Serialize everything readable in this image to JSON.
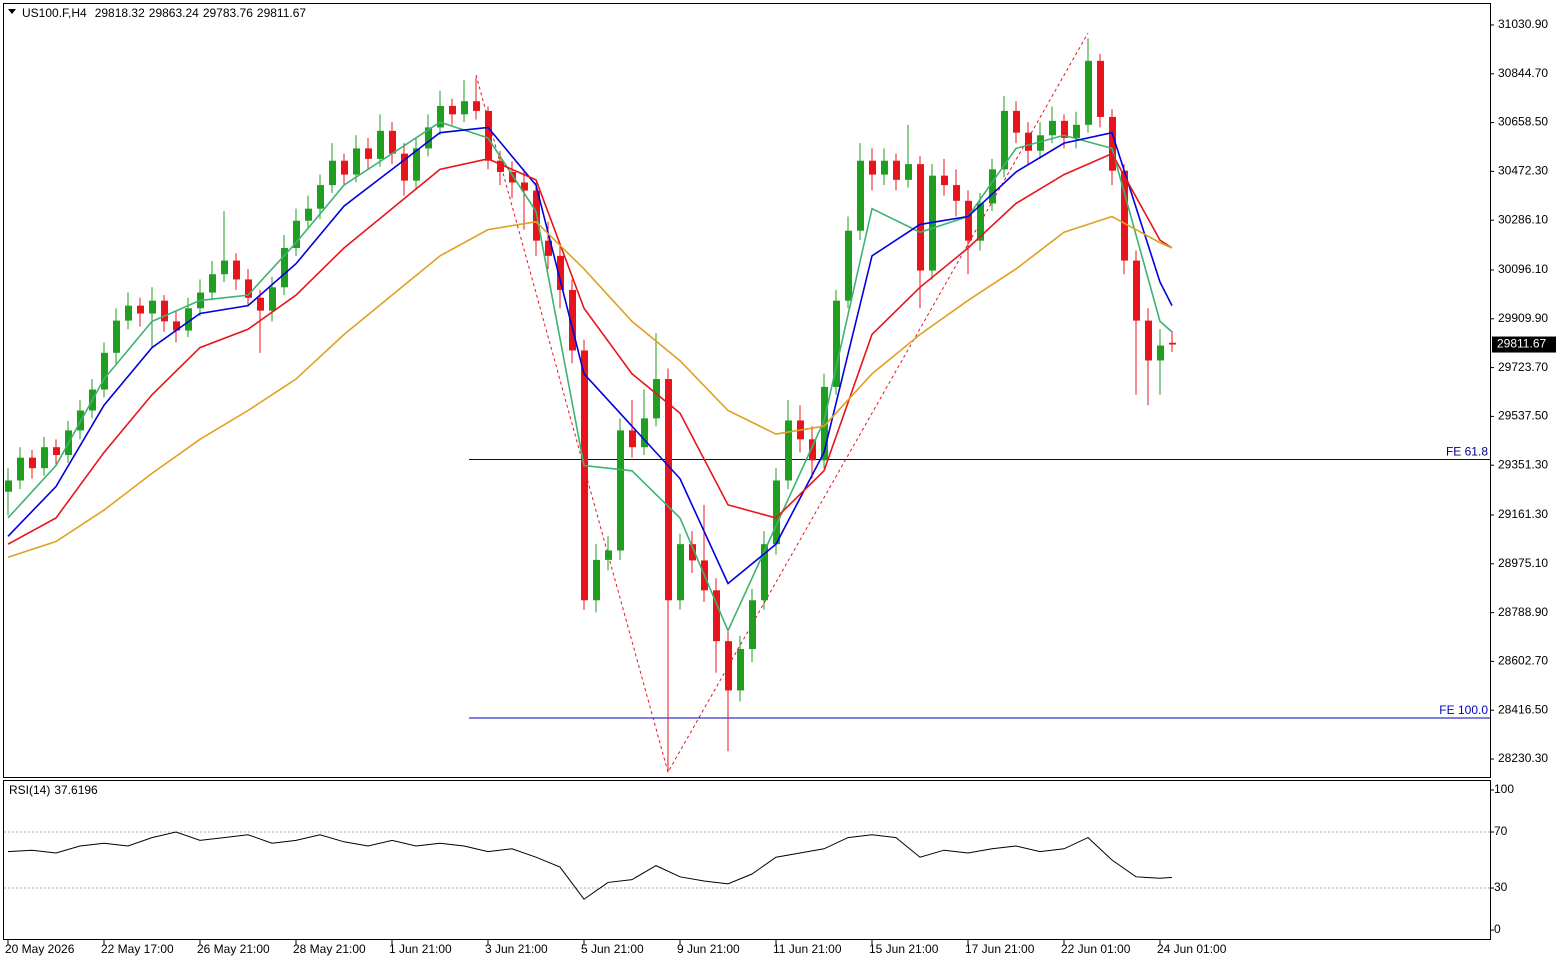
{
  "chart_data": [
    {
      "type": "candlestick",
      "title": "US100.F,H4",
      "categories": [
        "20 May 2026",
        null,
        null,
        null,
        null,
        null,
        null,
        null,
        "22 May 17:00",
        null,
        null,
        null,
        null,
        null,
        null,
        null,
        "26 May 21:00",
        null,
        null,
        null,
        null,
        null,
        null,
        null,
        "28 May 21:00",
        null,
        null,
        null,
        null,
        null,
        null,
        null,
        "1 Jun 21:00",
        null,
        null,
        null,
        null,
        null,
        null,
        null,
        "3 Jun 21:00",
        null,
        null,
        null,
        null,
        null,
        null,
        null,
        "5 Jun 21:00",
        null,
        null,
        null,
        null,
        null,
        null,
        null,
        "9 Jun 21:00",
        null,
        null,
        null,
        null,
        null,
        null,
        null,
        "11 Jun 21:00",
        null,
        null,
        null,
        null,
        null,
        null,
        null,
        "15 Jun 21:00",
        null,
        null,
        null,
        null,
        null,
        null,
        null,
        "17 Jun 21:00",
        null,
        null,
        null,
        null,
        null,
        null,
        null,
        "22 Jun 01:00",
        null,
        null,
        null,
        null,
        null,
        null,
        null,
        "24 Jun 01:00",
        null
      ],
      "ohlc": [
        [
          29250,
          29340,
          29160,
          29293
        ],
        [
          29293,
          29420,
          29260,
          29380
        ],
        [
          29380,
          29410,
          29300,
          29340
        ],
        [
          29340,
          29460,
          29310,
          29420
        ],
        [
          29420,
          29450,
          29350,
          29390
        ],
        [
          29390,
          29520,
          29360,
          29484
        ],
        [
          29484,
          29600,
          29450,
          29560
        ],
        [
          29560,
          29680,
          29530,
          29640
        ],
        [
          29640,
          29820,
          29610,
          29780
        ],
        [
          29780,
          29950,
          29740,
          29903
        ],
        [
          29903,
          30010,
          29870,
          29960
        ],
        [
          29960,
          29990,
          29880,
          29930
        ],
        [
          29930,
          30030,
          29800,
          29979
        ],
        [
          29979,
          30000,
          29860,
          29900
        ],
        [
          29900,
          29940,
          29820,
          29865
        ],
        [
          29865,
          29990,
          29840,
          29950
        ],
        [
          29950,
          30060,
          29920,
          30010
        ],
        [
          30010,
          30130,
          29980,
          30080
        ],
        [
          30080,
          30320,
          30050,
          30132
        ],
        [
          30132,
          30160,
          30020,
          30060
        ],
        [
          30060,
          30100,
          29960,
          29990
        ],
        [
          29990,
          30020,
          29780,
          29941
        ],
        [
          29941,
          30070,
          29900,
          30030
        ],
        [
          30030,
          30230,
          30000,
          30180
        ],
        [
          30180,
          30330,
          30150,
          30284
        ],
        [
          30284,
          30380,
          30250,
          30330
        ],
        [
          30330,
          30460,
          30290,
          30420
        ],
        [
          30420,
          30580,
          30390,
          30513
        ],
        [
          30513,
          30540,
          30420,
          30460
        ],
        [
          30460,
          30610,
          30430,
          30560
        ],
        [
          30560,
          30600,
          30480,
          30520
        ],
        [
          30520,
          30690,
          30490,
          30627
        ],
        [
          30627,
          30660,
          30500,
          30540
        ],
        [
          30540,
          30580,
          30380,
          30437
        ],
        [
          30437,
          30600,
          30410,
          30560
        ],
        [
          30560,
          30690,
          30530,
          30640
        ],
        [
          30640,
          30780,
          30610,
          30722
        ],
        [
          30722,
          30750,
          30650,
          30690
        ],
        [
          30690,
          30820,
          30660,
          30740
        ],
        [
          30740,
          30830,
          30670,
          30703
        ],
        [
          30703,
          30720,
          30480,
          30513
        ],
        [
          30513,
          30550,
          30420,
          30470
        ],
        [
          30470,
          30510,
          30370,
          30430
        ],
        [
          30430,
          30480,
          30250,
          30399
        ],
        [
          30399,
          30430,
          30150,
          30208
        ],
        [
          30208,
          30280,
          30100,
          30150
        ],
        [
          30150,
          30190,
          29950,
          30020
        ],
        [
          30020,
          30060,
          29740,
          29789
        ],
        [
          29789,
          29830,
          28800,
          28836
        ],
        [
          28836,
          29050,
          28790,
          28990
        ],
        [
          28990,
          29080,
          28950,
          29026
        ],
        [
          29026,
          29530,
          28990,
          29484
        ],
        [
          29484,
          29600,
          29380,
          29420
        ],
        [
          29420,
          29640,
          29390,
          29530
        ],
        [
          29530,
          29855,
          29500,
          29680
        ],
        [
          29680,
          29720,
          28180,
          28836
        ],
        [
          28836,
          29090,
          28800,
          29050
        ],
        [
          29050,
          29100,
          28940,
          28988
        ],
        [
          28988,
          29200,
          28830,
          28874
        ],
        [
          28874,
          28920,
          28560,
          28680
        ],
        [
          28680,
          28720,
          28260,
          28492
        ],
        [
          28492,
          28700,
          28450,
          28650
        ],
        [
          28650,
          28880,
          28600,
          28836
        ],
        [
          28836,
          29100,
          28800,
          29050
        ],
        [
          29050,
          29340,
          29010,
          29293
        ],
        [
          29293,
          29600,
          29260,
          29522
        ],
        [
          29522,
          29580,
          29400,
          29450
        ],
        [
          29450,
          29500,
          29300,
          29370
        ],
        [
          29370,
          29700,
          29340,
          29650
        ],
        [
          29650,
          30020,
          29620,
          29979
        ],
        [
          29979,
          30300,
          29950,
          30246
        ],
        [
          30246,
          30580,
          30210,
          30513
        ],
        [
          30513,
          30560,
          30400,
          30460
        ],
        [
          30460,
          30560,
          30420,
          30513
        ],
        [
          30513,
          30540,
          30400,
          30440
        ],
        [
          30440,
          30650,
          30410,
          30500
        ],
        [
          30500,
          30530,
          29950,
          30094
        ],
        [
          30094,
          30500,
          30060,
          30456
        ],
        [
          30456,
          30520,
          30380,
          30420
        ],
        [
          30420,
          30480,
          30300,
          30360
        ],
        [
          30360,
          30400,
          30080,
          30208
        ],
        [
          30208,
          30390,
          30170,
          30350
        ],
        [
          30350,
          30520,
          30320,
          30480
        ],
        [
          30480,
          30760,
          30450,
          30703
        ],
        [
          30703,
          30740,
          30580,
          30620
        ],
        [
          30620,
          30660,
          30500,
          30551
        ],
        [
          30551,
          30660,
          30520,
          30610
        ],
        [
          30610,
          30720,
          30580,
          30665
        ],
        [
          30665,
          30690,
          30560,
          30600
        ],
        [
          30600,
          30700,
          30560,
          30650
        ],
        [
          30650,
          30980,
          30620,
          30894
        ],
        [
          30894,
          30920,
          30640,
          30680
        ],
        [
          30680,
          30710,
          30420,
          30475
        ],
        [
          30475,
          30500,
          30080,
          30132
        ],
        [
          30132,
          30170,
          29620,
          29903
        ],
        [
          29903,
          29950,
          29580,
          29751
        ],
        [
          29751,
          29870,
          29620,
          29808
        ],
        [
          29818.32,
          29863.24,
          29783.76,
          29811.67
        ]
      ],
      "up_color": "#1f9e1f",
      "down_color": "#e8141b",
      "ylim": [
        28161.7,
        31110.9
      ],
      "yticks": [
        {
          "value": 31030.9,
          "label": "31030.90"
        },
        {
          "value": 30844.7,
          "label": "30844.70"
        },
        {
          "value": 30658.5,
          "label": "30658.50"
        },
        {
          "value": 30472.3,
          "label": "30472.30"
        },
        {
          "value": 30286.1,
          "label": "30286.10"
        },
        {
          "value": 30096.1,
          "label": "30096.10"
        },
        {
          "value": 29909.9,
          "label": "29909.90"
        },
        {
          "value": 29723.7,
          "label": "29723.70"
        },
        {
          "value": 29537.5,
          "label": "29537.50"
        },
        {
          "value": 29351.3,
          "label": "29351.30"
        },
        {
          "value": 29161.3,
          "label": "29161.30"
        },
        {
          "value": 28975.1,
          "label": "28975.10"
        },
        {
          "value": 28788.9,
          "label": "28788.90"
        },
        {
          "value": 28602.7,
          "label": "28602.70"
        },
        {
          "value": 28416.5,
          "label": "28416.50"
        },
        {
          "value": 28230.3,
          "label": "28230.30"
        }
      ],
      "lines": [
        {
          "color": "#3cb371",
          "x": [
            0,
            4,
            8,
            12,
            16,
            20,
            24,
            28,
            32,
            36,
            40,
            44,
            48,
            52,
            56,
            60,
            64,
            68,
            72,
            76,
            80,
            84,
            88,
            92,
            96,
            97
          ],
          "values": [
            29150,
            29350,
            29680,
            29900,
            29980,
            30000,
            30200,
            30420,
            30540,
            30660,
            30600,
            30320,
            29350,
            29330,
            29150,
            28720,
            29120,
            29520,
            30330,
            30240,
            30300,
            30560,
            30610,
            30560,
            29900,
            29860
          ]
        },
        {
          "color": "#0000e0",
          "x": [
            0,
            4,
            8,
            12,
            16,
            20,
            24,
            28,
            32,
            36,
            40,
            44,
            48,
            52,
            56,
            60,
            64,
            68,
            72,
            76,
            80,
            84,
            88,
            92,
            96,
            97
          ],
          "values": [
            29080,
            29270,
            29580,
            29800,
            29930,
            29960,
            30120,
            30340,
            30480,
            30620,
            30640,
            30420,
            29700,
            29500,
            29300,
            28900,
            29050,
            29400,
            30150,
            30270,
            30300,
            30470,
            30580,
            30620,
            30050,
            29960
          ]
        },
        {
          "color": "#e8141b",
          "x": [
            0,
            4,
            8,
            12,
            16,
            20,
            24,
            28,
            32,
            36,
            40,
            44,
            48,
            52,
            56,
            60,
            64,
            68,
            72,
            76,
            80,
            84,
            88,
            92,
            96,
            97
          ],
          "values": [
            29050,
            29150,
            29400,
            29620,
            29800,
            29870,
            30000,
            30180,
            30330,
            30480,
            30520,
            30440,
            29950,
            29700,
            29550,
            29200,
            29150,
            29330,
            29850,
            30030,
            30180,
            30350,
            30460,
            30540,
            30210,
            30180
          ]
        },
        {
          "color": "#e0a020",
          "x": [
            0,
            4,
            8,
            12,
            16,
            20,
            24,
            28,
            32,
            36,
            40,
            44,
            48,
            52,
            56,
            60,
            64,
            68,
            72,
            76,
            80,
            84,
            88,
            92,
            96,
            97
          ],
          "values": [
            29000,
            29060,
            29180,
            29320,
            29450,
            29560,
            29680,
            29850,
            30000,
            30150,
            30250,
            30280,
            30100,
            29900,
            29750,
            29560,
            29470,
            29500,
            29700,
            29850,
            29980,
            30100,
            30240,
            30300,
            30200,
            30180
          ]
        }
      ],
      "zigzag": {
        "color": "#e8141b",
        "x": [
          39,
          55,
          90
        ],
        "values": [
          30840,
          28180,
          31000
        ]
      },
      "levels": [
        {
          "label": "FE 61.8",
          "value": 29373,
          "color": "#000080"
        },
        {
          "label": "FE 100.0",
          "value": 28387,
          "color": "#0000c0"
        }
      ]
    },
    {
      "type": "line",
      "title": "RSI(14)",
      "color": "#000000",
      "x": [
        0,
        2,
        4,
        6,
        8,
        10,
        12,
        14,
        16,
        18,
        20,
        22,
        24,
        26,
        28,
        30,
        32,
        34,
        36,
        38,
        40,
        42,
        44,
        46,
        48,
        50,
        52,
        54,
        56,
        58,
        60,
        62,
        64,
        66,
        68,
        70,
        72,
        74,
        76,
        78,
        80,
        82,
        84,
        86,
        88,
        90,
        92,
        94,
        96,
        97
      ],
      "values": [
        56,
        57,
        55,
        60,
        62,
        60,
        66,
        70,
        64,
        66,
        68,
        62,
        64,
        68,
        63,
        60,
        64,
        60,
        62,
        60,
        56,
        58,
        52,
        45,
        22,
        34,
        36,
        46,
        38,
        35,
        33,
        40,
        52,
        55,
        58,
        66,
        68,
        66,
        52,
        57,
        55,
        58,
        60,
        56,
        58,
        66,
        50,
        38,
        37,
        37.6196
      ],
      "ylim": [
        -7.1,
        106.4
      ],
      "yticks": [
        100,
        70,
        30,
        0
      ],
      "levels": [
        70,
        30
      ]
    }
  ]
}
